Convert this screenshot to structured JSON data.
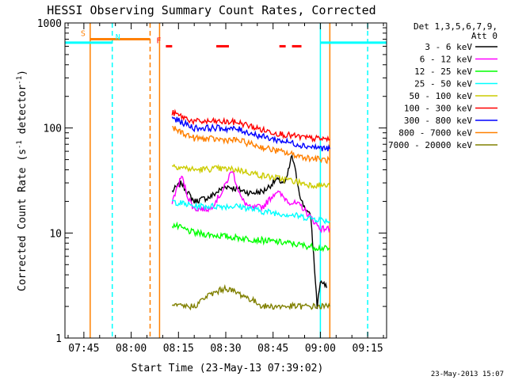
{
  "chart_data": {
    "type": "line",
    "title": "HESSI Observing Summary Count Rates, Corrected",
    "xlabel": "Start Time (23-May-13 07:39:02)",
    "ylabel": "Corrected Count Rate (s^-1 detector^-1)",
    "x_range_minutes": [
      "07:39",
      "09:21"
    ],
    "y_scale": "log",
    "ylim": [
      1,
      1000
    ],
    "x_ticks": [
      "07:45",
      "08:00",
      "08:15",
      "08:30",
      "08:45",
      "09:00",
      "09:15"
    ],
    "y_ticks": [
      "1",
      "10",
      "100",
      "1000"
    ],
    "legend_placement": "right",
    "legend_header": [
      "Det 1,3,5,6,7,9,",
      "Att 0"
    ],
    "series": [
      {
        "name": "3 - 6 keV",
        "color": "#000000",
        "points": [
          [
            "08:13",
            25
          ],
          [
            "08:16",
            30
          ],
          [
            "08:18",
            24
          ],
          [
            "08:20",
            20
          ],
          [
            "08:25",
            22
          ],
          [
            "08:30",
            28
          ],
          [
            "08:34",
            26
          ],
          [
            "08:38",
            24
          ],
          [
            "08:42",
            25
          ],
          [
            "08:46",
            32
          ],
          [
            "08:49",
            30
          ],
          [
            "08:51",
            55
          ],
          [
            "08:54",
            20
          ],
          [
            "08:57",
            14
          ],
          [
            "08:59",
            2
          ],
          [
            "09:00",
            3.5
          ],
          [
            "09:02",
            3
          ]
        ]
      },
      {
        "name": "6 - 12 keV",
        "color": "#ff00ff",
        "points": [
          [
            "08:13",
            20
          ],
          [
            "08:16",
            35
          ],
          [
            "08:18",
            22
          ],
          [
            "08:20",
            17
          ],
          [
            "08:25",
            17
          ],
          [
            "08:29",
            25
          ],
          [
            "08:32",
            40
          ],
          [
            "08:35",
            21
          ],
          [
            "08:38",
            17
          ],
          [
            "08:42",
            18
          ],
          [
            "08:46",
            25
          ],
          [
            "08:50",
            20
          ],
          [
            "08:54",
            18
          ],
          [
            "08:57",
            14
          ],
          [
            "09:00",
            11
          ],
          [
            "09:03",
            11
          ]
        ]
      },
      {
        "name": "12 - 25 keV",
        "color": "#00ff00",
        "points": [
          [
            "08:13",
            12
          ],
          [
            "08:20",
            10
          ],
          [
            "08:27",
            9.5
          ],
          [
            "08:34",
            9
          ],
          [
            "08:42",
            8.5
          ],
          [
            "08:50",
            8
          ],
          [
            "08:56",
            7.5
          ],
          [
            "09:03",
            7
          ]
        ]
      },
      {
        "name": "25 - 50 keV",
        "color": "#00ffff",
        "points": [
          [
            "08:13",
            20
          ],
          [
            "08:20",
            18
          ],
          [
            "08:27",
            18
          ],
          [
            "08:34",
            18
          ],
          [
            "08:42",
            16
          ],
          [
            "08:50",
            15
          ],
          [
            "08:56",
            14
          ],
          [
            "09:03",
            13
          ]
        ]
      },
      {
        "name": "50 - 100 keV",
        "color": "#cccc00",
        "points": [
          [
            "08:13",
            44
          ],
          [
            "08:20",
            40
          ],
          [
            "08:27",
            41
          ],
          [
            "08:34",
            40
          ],
          [
            "08:42",
            35
          ],
          [
            "08:50",
            32
          ],
          [
            "08:56",
            29
          ],
          [
            "09:03",
            28
          ]
        ]
      },
      {
        "name": "100 - 300 keV",
        "color": "#ff0000",
        "points": [
          [
            "08:13",
            140
          ],
          [
            "08:20",
            115
          ],
          [
            "08:27",
            115
          ],
          [
            "08:34",
            113
          ],
          [
            "08:42",
            95
          ],
          [
            "08:50",
            85
          ],
          [
            "08:56",
            80
          ],
          [
            "09:03",
            78
          ]
        ]
      },
      {
        "name": "300 - 800 keV",
        "color": "#0000ff",
        "points": [
          [
            "08:13",
            125
          ],
          [
            "08:20",
            100
          ],
          [
            "08:27",
            100
          ],
          [
            "08:34",
            97
          ],
          [
            "08:42",
            82
          ],
          [
            "08:50",
            73
          ],
          [
            "08:56",
            67
          ],
          [
            "09:03",
            63
          ]
        ]
      },
      {
        "name": "800 - 7000 keV",
        "color": "#ff8000",
        "points": [
          [
            "08:13",
            100
          ],
          [
            "08:20",
            80
          ],
          [
            "08:27",
            78
          ],
          [
            "08:34",
            76
          ],
          [
            "08:42",
            65
          ],
          [
            "08:50",
            57
          ],
          [
            "08:56",
            52
          ],
          [
            "09:03",
            49
          ]
        ]
      },
      {
        "name": "7000 - 20000 keV",
        "color": "#808000",
        "points": [
          [
            "08:13",
            2
          ],
          [
            "08:20",
            2
          ],
          [
            "08:24",
            2.5
          ],
          [
            "08:30",
            3
          ],
          [
            "08:36",
            2.5
          ],
          [
            "08:42",
            2
          ],
          [
            "08:50",
            2
          ],
          [
            "08:56",
            2
          ],
          [
            "09:03",
            2
          ]
        ]
      }
    ],
    "annotations": [
      {
        "label": "S",
        "color": "#ff8000",
        "y": 700,
        "x_start": "07:47",
        "x_end": "08:06"
      },
      {
        "label": "N",
        "color": "#00ffff",
        "y": 650,
        "x_start": "07:39",
        "x_end": "07:54"
      },
      {
        "label": "F",
        "color": "#ff0000",
        "y": 600,
        "segments": [
          [
            "08:11",
            "08:13"
          ],
          [
            "08:27",
            "08:31"
          ],
          [
            "08:47",
            "08:49"
          ],
          [
            "08:51",
            "08:54"
          ]
        ]
      }
    ],
    "vertical_markers": [
      {
        "x": "07:47",
        "color": "#ff8000",
        "style": "solid"
      },
      {
        "x": "07:54",
        "color": "#00ffff",
        "style": "dashed"
      },
      {
        "x": "08:06",
        "color": "#ff8000",
        "style": "dashed"
      },
      {
        "x": "08:09",
        "color": "#ff8000",
        "style": "solid"
      },
      {
        "x": "09:00",
        "color": "#00ffff",
        "style": "solid"
      },
      {
        "x": "09:03",
        "color": "#ff8000",
        "style": "solid"
      },
      {
        "x": "09:15",
        "color": "#00ffff",
        "style": "dashed"
      }
    ],
    "footer_date": "23-May-2013 15:07"
  }
}
